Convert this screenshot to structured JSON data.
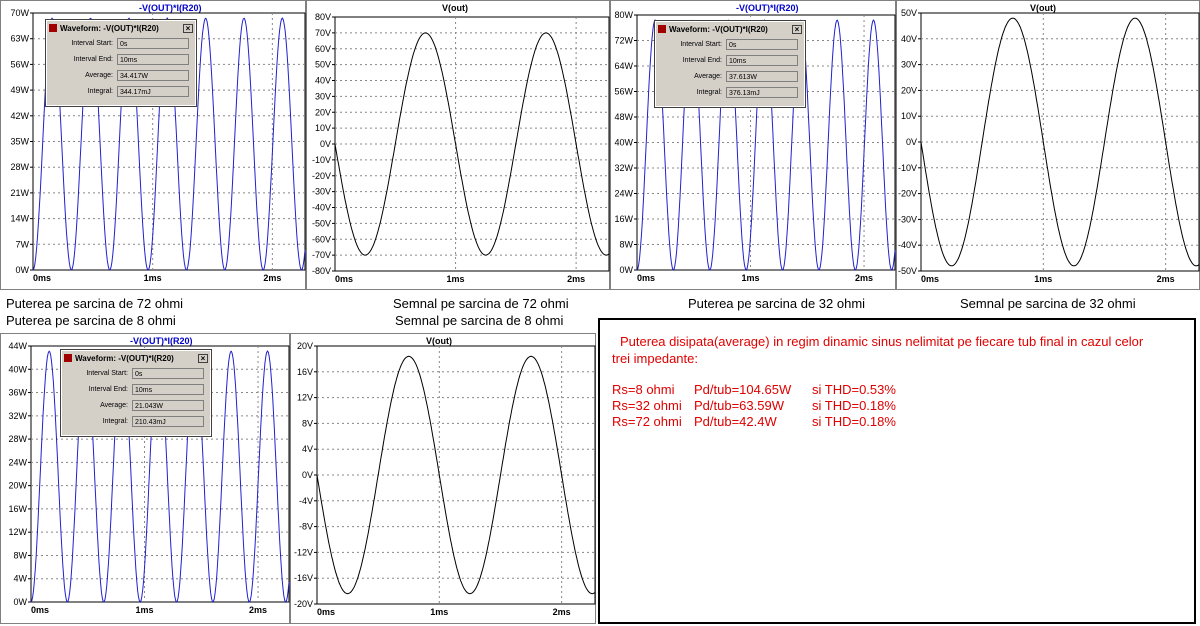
{
  "colors": {
    "power_trace": "#2020d0",
    "signal_trace": "#000000",
    "title_blue": "#0000cc",
    "title_black": "#000000",
    "note_red": "#e00000"
  },
  "panels": [
    {
      "title": "-V(OUT)*I(R20)",
      "y_ticks": [
        "70W",
        "63W",
        "56W",
        "49W",
        "42W",
        "35W",
        "28W",
        "21W",
        "14W",
        "7W",
        "0W"
      ],
      "x_ticks": [
        "0ms",
        "1ms",
        "2ms"
      ],
      "dialog": {
        "title": "Waveform: -V(OUT)*I(R20)",
        "interval_start": "0s",
        "interval_end": "10ms",
        "average": "34.417W",
        "integral": "344.17mJ"
      },
      "caption": "Puterea pe sarcina de 72 ohmi"
    },
    {
      "title": "V(out)",
      "y_ticks": [
        "80V",
        "70V",
        "60V",
        "50V",
        "40V",
        "30V",
        "20V",
        "10V",
        "0V",
        "-10V",
        "-20V",
        "-30V",
        "-40V",
        "-50V",
        "-60V",
        "-70V",
        "-80V"
      ],
      "x_ticks": [
        "0ms",
        "1ms",
        "2ms"
      ],
      "caption": "Semnal pe sarcina de 72 ohmi"
    },
    {
      "title": "-V(OUT)*I(R20)",
      "y_ticks": [
        "80W",
        "72W",
        "64W",
        "56W",
        "48W",
        "40W",
        "32W",
        "24W",
        "16W",
        "8W",
        "0W"
      ],
      "x_ticks": [
        "0ms",
        "1ms",
        "2ms"
      ],
      "dialog": {
        "title": "Waveform: -V(OUT)*I(R20)",
        "interval_start": "0s",
        "interval_end": "10ms",
        "average": "37.613W",
        "integral": "376.13mJ"
      },
      "caption": "Puterea pe sarcina de 32 ohmi"
    },
    {
      "title": "V(out)",
      "y_ticks": [
        "50V",
        "40V",
        "30V",
        "20V",
        "10V",
        "0V",
        "-10V",
        "-20V",
        "-30V",
        "-40V",
        "-50V"
      ],
      "x_ticks": [
        "0ms",
        "1ms",
        "2ms"
      ],
      "caption": "Semnal pe sarcina de 32 ohmi"
    },
    {
      "title": "-V(OUT)*I(R20)",
      "y_ticks": [
        "44W",
        "40W",
        "36W",
        "32W",
        "28W",
        "24W",
        "20W",
        "16W",
        "12W",
        "8W",
        "4W",
        "0W"
      ],
      "x_ticks": [
        "0ms",
        "1ms",
        "2ms"
      ],
      "dialog": {
        "title": "Waveform: -V(OUT)*I(R20)",
        "interval_start": "0s",
        "interval_end": "10ms",
        "average": "21.043W",
        "integral": "210.43mJ"
      },
      "caption": "Puterea pe sarcina de  8 ohmi"
    },
    {
      "title": "V(out)",
      "y_ticks": [
        "20V",
        "16V",
        "12V",
        "8V",
        "4V",
        "0V",
        "-4V",
        "-8V",
        "-12V",
        "-16V",
        "-20V"
      ],
      "x_ticks": [
        "0ms",
        "1ms",
        "2ms"
      ],
      "caption": "Semnal pe sarcina de 8 ohmi"
    }
  ],
  "dialog_labels": {
    "interval_start": "Interval Start:",
    "interval_end": "Interval End:",
    "average": "Average:",
    "integral": "Integral:",
    "close": "×"
  },
  "note": {
    "intro_line1": "Puterea disipata(average) in regim dinamic sinus nelimitat pe fiecare tub final in cazul celor",
    "intro_line2": "trei impedante:",
    "rows": [
      {
        "rs": "Rs=8 ohmi",
        "pd": "Pd/tub=104.65W",
        "thd": "si THD=0.53%"
      },
      {
        "rs": "Rs=32 ohmi",
        "pd": "Pd/tub=63.59W",
        "thd": "si THD=0.18%"
      },
      {
        "rs": "Rs=72 ohmi",
        "pd": "Pd/tub=42.4W",
        "thd": "si THD=0.18%"
      }
    ]
  }
}
